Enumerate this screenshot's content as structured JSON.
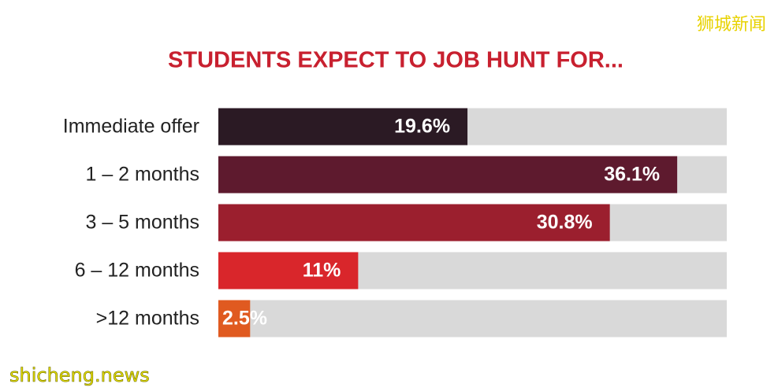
{
  "chart_data": {
    "type": "bar",
    "orientation": "horizontal",
    "title": "STUDENTS EXPECT TO JOB HUNT FOR...",
    "categories": [
      "Immediate offer",
      "1 – 2 months",
      "3 – 5 months",
      "6 – 12 months",
      ">12 months"
    ],
    "values": [
      19.6,
      36.1,
      30.8,
      11,
      2.5
    ],
    "value_labels": [
      "19.6%",
      "36.1%",
      "30.8%",
      "11%",
      "2.5%"
    ],
    "colors": [
      "#2b1a24",
      "#5e1a2e",
      "#9b1f2e",
      "#d9262b",
      "#e05a20"
    ],
    "track_color": "#d9d9d9",
    "xlim": [
      0,
      40
    ]
  },
  "watermarks": [
    "狮城新闻",
    "shicheng.news"
  ]
}
